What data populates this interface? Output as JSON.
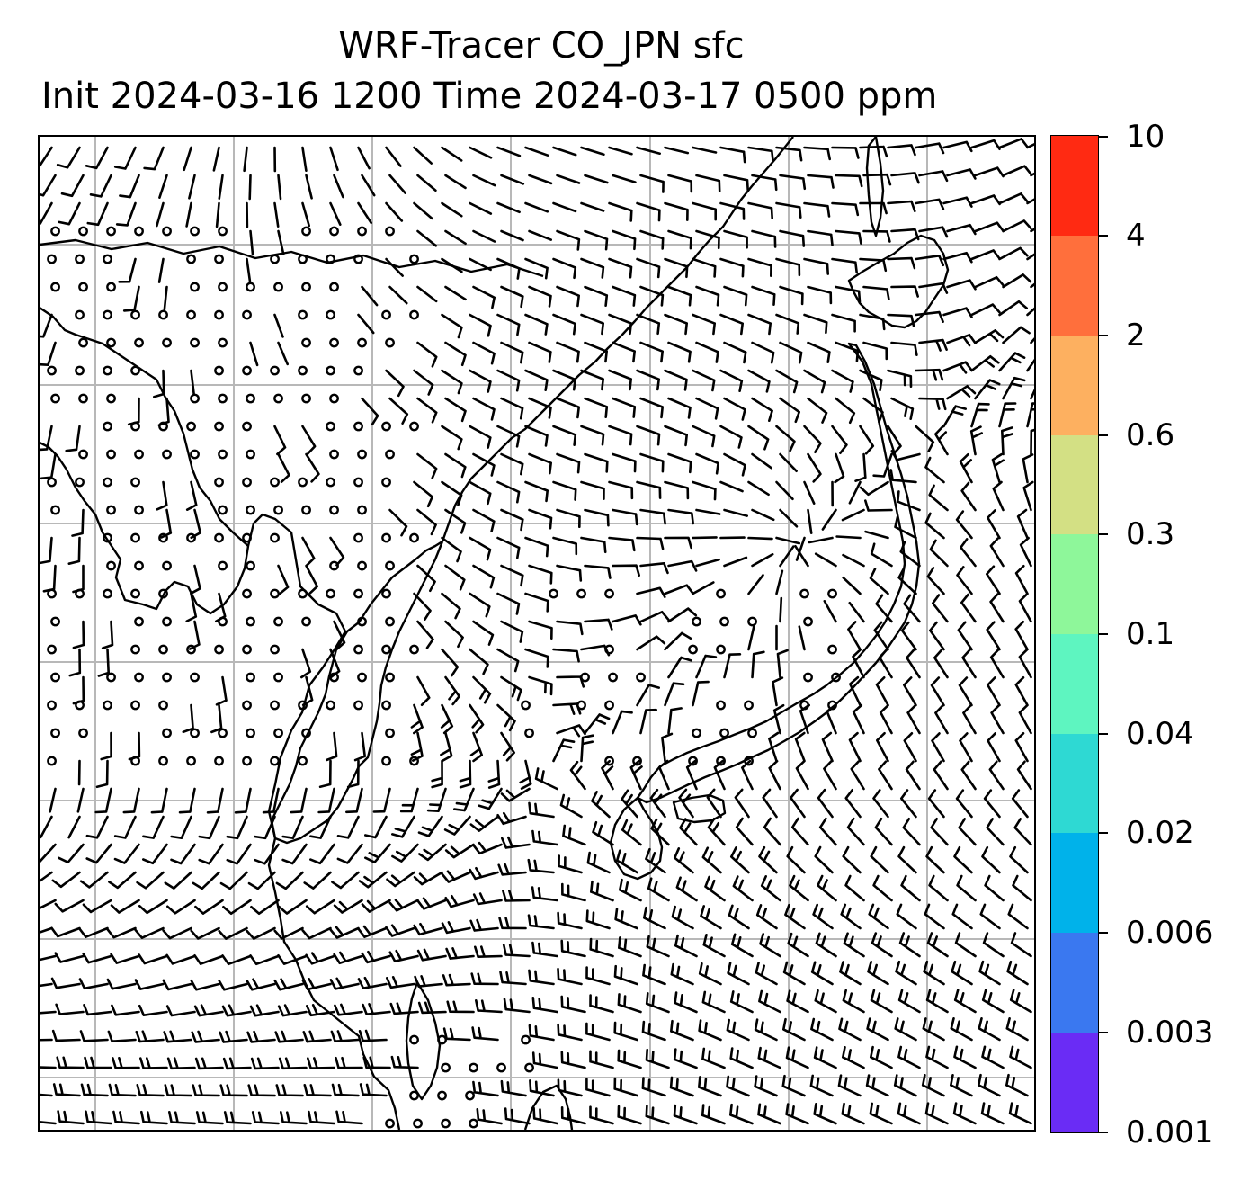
{
  "title": {
    "line1": "WRF-Tracer CO_JPN sfc",
    "line2": "Init 2024-03-16 1200 Time 2024-03-17 0500 ppm"
  },
  "colorbar": {
    "levels": [
      "0.001",
      "0.003",
      "0.006",
      "0.02",
      "0.04",
      "0.1",
      "0.3",
      "0.6",
      "2",
      "4",
      "10"
    ],
    "colors": [
      "#6a2cf5",
      "#3a78f0",
      "#00b2ea",
      "#2ed9d3",
      "#5ef5c0",
      "#8ef79a",
      "#d3e084",
      "#fdb060",
      "#ff6f3c",
      "#ff2a12"
    ]
  },
  "map": {
    "coastline_color": "#000000",
    "gridline_color": "#b8b8b8",
    "wind_barbs": "surface wind barbs",
    "calm_markers": "circle"
  }
}
